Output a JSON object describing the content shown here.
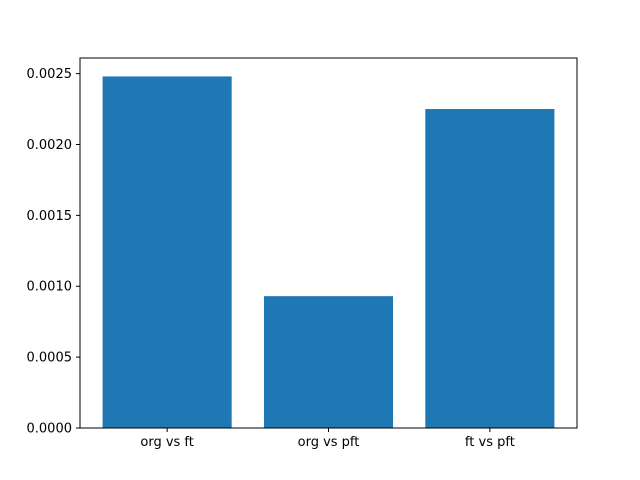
{
  "figure": {
    "background": "#ffffff",
    "title": ""
  },
  "chart_data": {
    "type": "bar",
    "categories": [
      "org vs ft",
      "org vs pft",
      "ft vs pft"
    ],
    "values": [
      0.00248,
      0.00093,
      0.00225
    ],
    "title": "",
    "xlabel": "",
    "ylabel": "",
    "ylim": [
      0,
      0.00261
    ],
    "yticks": [
      0.0,
      0.0005,
      0.001,
      0.0015,
      0.002,
      0.0025
    ],
    "ytick_labels": [
      "0.0000",
      "0.0005",
      "0.0010",
      "0.0015",
      "0.0020",
      "0.0025"
    ],
    "bar_color": "#1f77b4",
    "axis_color": "#000000",
    "grid": false,
    "legend": null,
    "bar_width_fraction": 0.8,
    "xlim": [
      -0.54,
      2.54
    ]
  }
}
